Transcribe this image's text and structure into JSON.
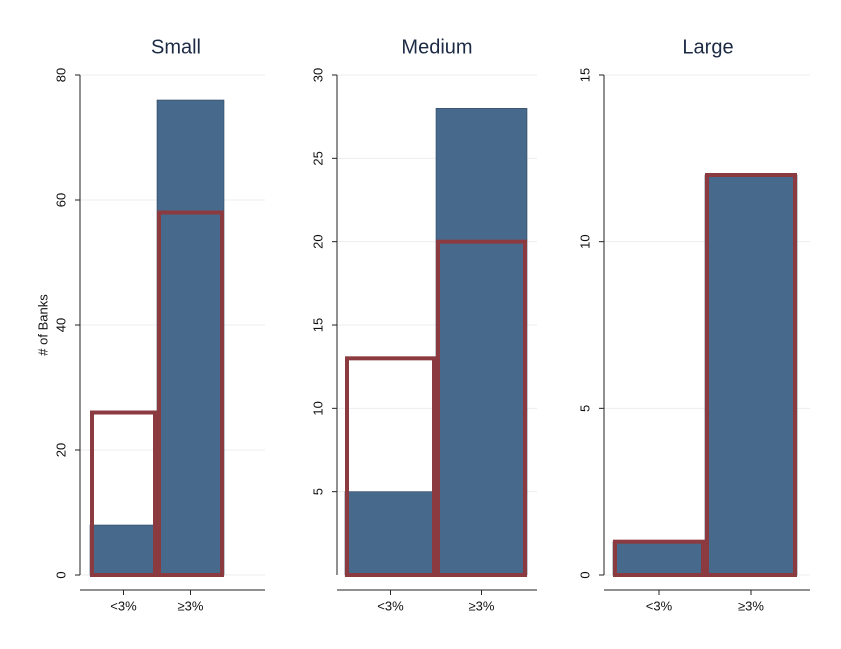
{
  "chart_data": [
    {
      "type": "bar",
      "title": "Small",
      "y_label": "# of Banks",
      "categories": [
        "<3%",
        "≥3%"
      ],
      "series": [
        {
          "color": "#476a8c",
          "style": "filled",
          "values": [
            8,
            76
          ]
        },
        {
          "color": "#8b3a3f",
          "style": "outline",
          "values": [
            26,
            58
          ]
        }
      ],
      "ylim": [
        0,
        80
      ],
      "yticks": [
        0,
        20,
        40,
        60,
        80
      ],
      "grid": true
    },
    {
      "type": "bar",
      "title": "Medium",
      "categories": [
        "<3%",
        "≥3%"
      ],
      "series": [
        {
          "color": "#476a8c",
          "style": "filled",
          "values": [
            5,
            28
          ]
        },
        {
          "color": "#8b3a3f",
          "style": "outline",
          "values": [
            13,
            20
          ]
        }
      ],
      "ylim": [
        0,
        30
      ],
      "yticks": [
        5,
        10,
        15,
        20,
        25,
        30
      ],
      "grid": true
    },
    {
      "type": "bar",
      "title": "Large",
      "categories": [
        "<3%",
        "≥3%"
      ],
      "series": [
        {
          "color": "#476a8c",
          "style": "filled",
          "values": [
            1,
            12
          ]
        },
        {
          "color": "#8b3a3f",
          "style": "outline",
          "values": [
            1,
            12
          ]
        }
      ],
      "ylim": [
        0,
        15
      ],
      "yticks": [
        0,
        5,
        10,
        15
      ],
      "grid": true
    }
  ]
}
